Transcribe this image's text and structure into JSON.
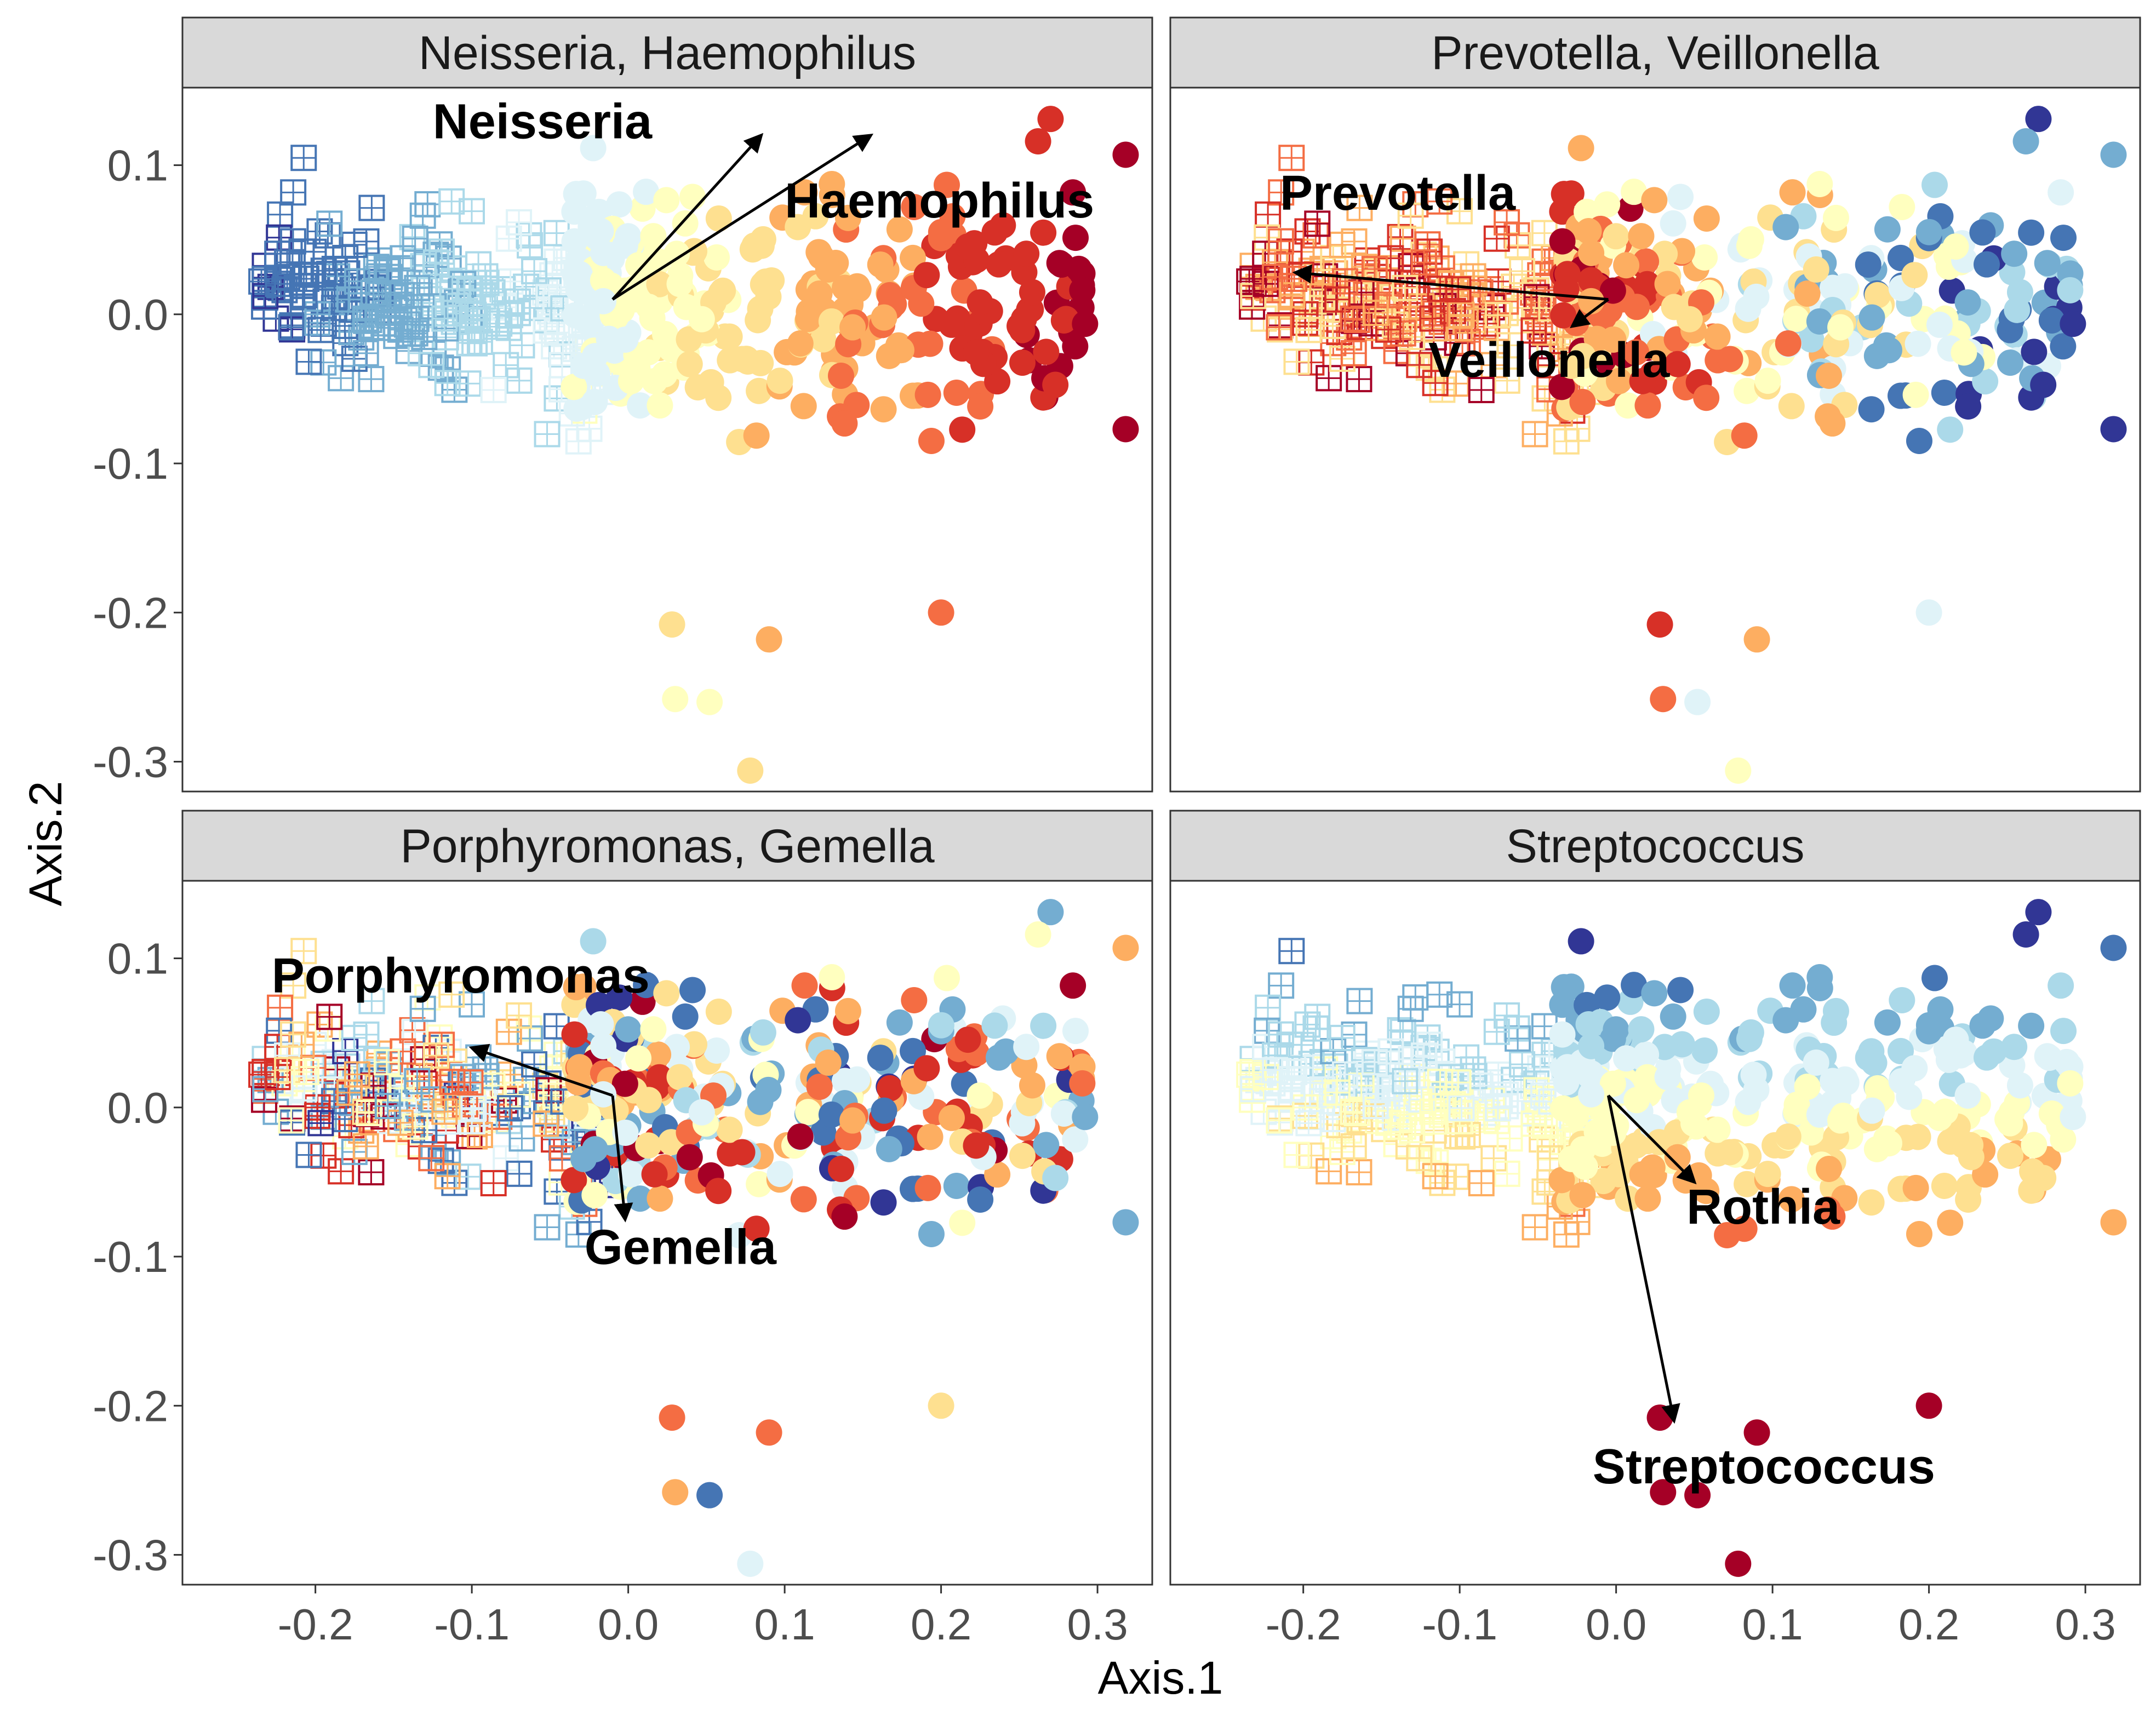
{
  "chart_data": {
    "type": "scatter",
    "xlabel": "Axis.1",
    "ylabel": "Axis.2",
    "xlim": [
      -0.285,
      0.335
    ],
    "ylim": [
      -0.32,
      0.152
    ],
    "x_ticks": [
      -0.2,
      -0.1,
      0.0,
      0.1,
      0.2,
      0.3
    ],
    "x_tick_labels": [
      "-0.2",
      "-0.1",
      "0.0",
      "0.1",
      "0.2",
      "0.3"
    ],
    "y_ticks": [
      0.1,
      0.0,
      -0.1,
      -0.2,
      -0.3
    ],
    "y_tick_labels": [
      "0.1",
      "0.0",
      "-0.1",
      "-0.2",
      "-0.3"
    ],
    "palette_low_to_high": [
      "#313695",
      "#4575b4",
      "#74add1",
      "#abd9e9",
      "#e0f3f8",
      "#ffffbf",
      "#fee090",
      "#fdae61",
      "#f46d43",
      "#d73027",
      "#a50026"
    ],
    "markers": {
      "square_group": "open square with cross",
      "circle_group": "filled circle"
    },
    "panels": [
      {
        "title": "Neisseria, Haemophilus",
        "color_mode": "gradient_x",
        "arrows": [
          {
            "label": "Neisseria",
            "from": [
              -0.01,
              0.01
            ],
            "to": [
              0.085,
              0.12
            ]
          },
          {
            "label": "Haemophilus",
            "from": [
              -0.01,
              0.01
            ],
            "to": [
              0.155,
              0.12
            ]
          }
        ],
        "labels": [
          {
            "text": "Neisseria",
            "x": -0.125,
            "y": 0.118,
            "anchor": "start"
          },
          {
            "text": "Haemophilus",
            "x": 0.1,
            "y": 0.065,
            "anchor": "start"
          }
        ]
      },
      {
        "title": "Prevotella, Veillonella",
        "color_mode": "inverse_x",
        "arrows": [
          {
            "label": "Prevotella",
            "from": [
              -0.005,
              0.01
            ],
            "to": [
              -0.205,
              0.028
            ]
          },
          {
            "label": "Veillonella",
            "from": [
              -0.005,
              0.01
            ],
            "to": [
              -0.028,
              -0.008
            ]
          }
        ],
        "labels": [
          {
            "text": "Prevotella",
            "x": -0.215,
            "y": 0.07,
            "anchor": "start"
          },
          {
            "text": "Veillonella",
            "x": -0.12,
            "y": -0.042,
            "anchor": "start"
          }
        ]
      },
      {
        "title": "Porphyromonas, Gemella",
        "color_mode": "mixed",
        "arrows": [
          {
            "label": "Porphyromonas",
            "from": [
              -0.01,
              0.008
            ],
            "to": [
              -0.1,
              0.04
            ]
          },
          {
            "label": "Gemella",
            "from": [
              -0.01,
              0.008
            ],
            "to": [
              -0.002,
              -0.075
            ]
          }
        ],
        "labels": [
          {
            "text": "Porphyromonas",
            "x": -0.228,
            "y": 0.077,
            "anchor": "start"
          },
          {
            "text": "Gemella",
            "x": -0.028,
            "y": -0.105,
            "anchor": "start"
          }
        ]
      },
      {
        "title": "Streptococcus",
        "color_mode": "gradient_y",
        "arrows": [
          {
            "label": "Rothia",
            "from": [
              -0.005,
              0.008
            ],
            "to": [
              0.05,
              -0.05
            ]
          },
          {
            "label": "Streptococcus",
            "from": [
              -0.005,
              0.008
            ],
            "to": [
              0.037,
              -0.21
            ]
          }
        ],
        "labels": [
          {
            "text": "Rothia",
            "x": 0.045,
            "y": -0.078,
            "anchor": "start"
          },
          {
            "text": "Streptococcus",
            "x": -0.015,
            "y": -0.252,
            "anchor": "start"
          }
        ]
      }
    ]
  }
}
